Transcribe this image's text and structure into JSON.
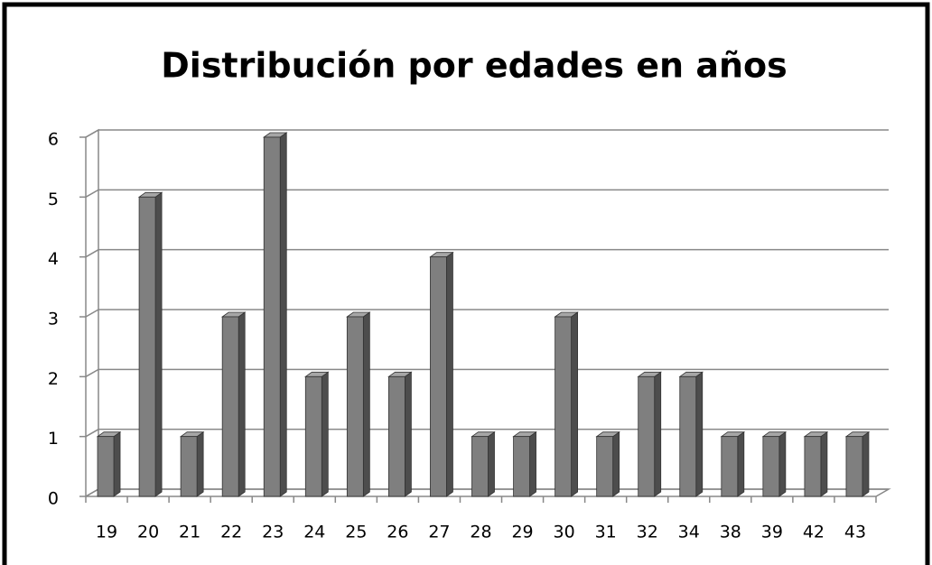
{
  "chart_data": {
    "type": "bar",
    "title": "Distribución por edades en años",
    "categories": [
      "19",
      "20",
      "21",
      "22",
      "23",
      "24",
      "25",
      "26",
      "27",
      "28",
      "29",
      "30",
      "31",
      "32",
      "34",
      "38",
      "39",
      "42",
      "43"
    ],
    "values": [
      1,
      5,
      1,
      3,
      6,
      2,
      3,
      2,
      4,
      1,
      1,
      3,
      1,
      2,
      2,
      1,
      1,
      1,
      1
    ],
    "color": "#7f7f7f",
    "ylim": [
      0,
      6
    ],
    "yticks": [
      0,
      1,
      2,
      3,
      4,
      5,
      6
    ],
    "grid": true
  }
}
